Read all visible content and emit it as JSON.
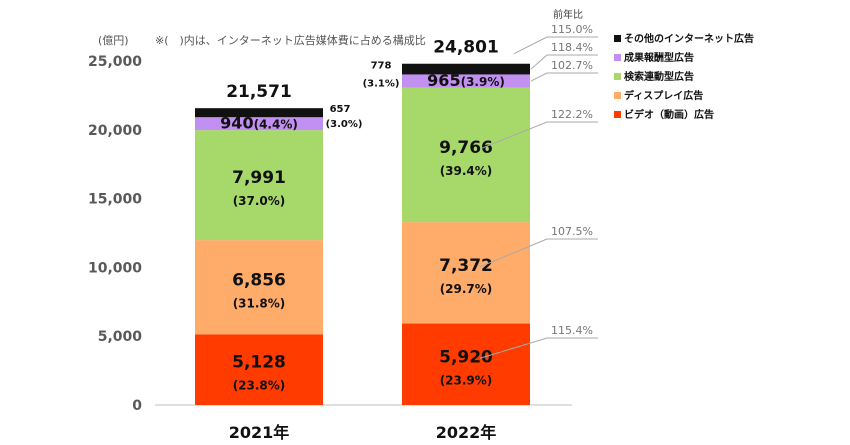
{
  "chart_data": {
    "type": "bar",
    "stacked": true,
    "unit_label": "(億円)",
    "note": "※(　)内は、インターネット広告媒体費に占める構成比",
    "categories": [
      "2021年",
      "2022年"
    ],
    "ylim": [
      0,
      25000
    ],
    "yticks": [
      "0",
      "5,000",
      "10,000",
      "15,000",
      "20,000",
      "25,000"
    ],
    "series": [
      {
        "name": "ビデオ（動画）広告",
        "color": "#FF3B00",
        "values": [
          5128,
          5920
        ],
        "labels": [
          "5,128",
          "5,920"
        ],
        "pct_labels": [
          "(23.8%)",
          "(23.9%)"
        ],
        "yoy": "115.4%"
      },
      {
        "name": "ディスプレイ広告",
        "color": "#FFAB6A",
        "values": [
          6856,
          7372
        ],
        "labels": [
          "6,856",
          "7,372"
        ],
        "pct_labels": [
          "(31.8%)",
          "(29.7%)"
        ],
        "yoy": "107.5%"
      },
      {
        "name": "検索連動型広告",
        "color": "#A6D96A",
        "values": [
          7991,
          9766
        ],
        "labels": [
          "7,991",
          "9,766"
        ],
        "pct_labels": [
          "(37.0%)",
          "(39.4%)"
        ],
        "yoy": "122.2%"
      },
      {
        "name": "成果報酬型広告",
        "color": "#C190F0",
        "values": [
          940,
          965
        ],
        "labels": [
          "940",
          "965"
        ],
        "pct_labels": [
          "(4.4%)",
          "(3.9%)"
        ],
        "yoy": "102.7%"
      },
      {
        "name": "その他のインターネット広告",
        "color": "#111111",
        "values": [
          657,
          778
        ],
        "labels": [
          "657",
          "778"
        ],
        "pct_labels": [
          "(3.0%)",
          "(3.1%)"
        ],
        "yoy": "118.4%"
      }
    ],
    "totals": [
      "21,571",
      "24,801"
    ],
    "total_yoy": "115.0%",
    "yoy_header": "前年比",
    "grid": false,
    "legend_position": "top-right"
  }
}
